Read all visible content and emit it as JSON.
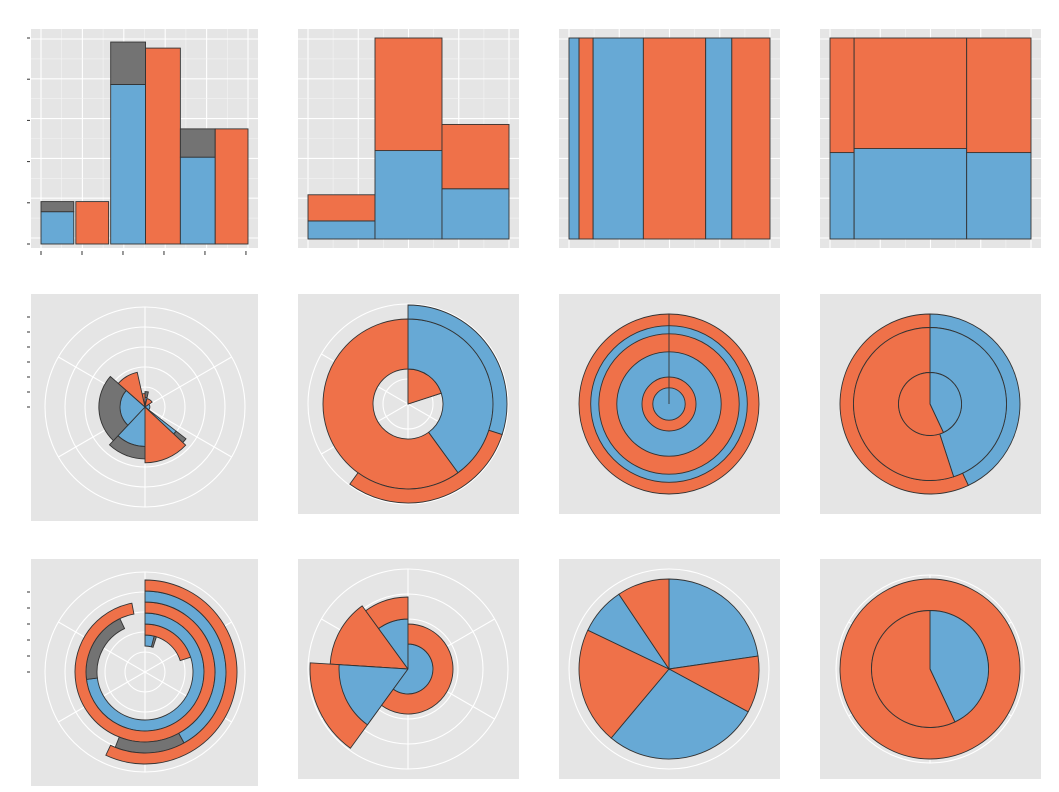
{
  "colors": {
    "blue": "#67a9d5",
    "orange": "#ef7149",
    "gray": "#737373",
    "panel": "#e5e5e5",
    "grid": "#ffffff"
  },
  "chart_data": [
    {
      "type": "bar",
      "subtype": "stacked-histogram",
      "grid": true,
      "ylim": [
        0,
        1.02
      ],
      "x": [
        0,
        1,
        2,
        3,
        4,
        5
      ],
      "bars": [
        {
          "x0": 0,
          "x1": 0.8,
          "segments": [
            {
              "fill": "blue",
              "value": 0.16
            },
            {
              "fill": "gray",
              "value": 0.05
            }
          ]
        },
        {
          "x0": 0.85,
          "x1": 1.65,
          "segments": [
            {
              "fill": "orange",
              "value": 0.21
            }
          ]
        },
        {
          "x0": 1.7,
          "x1": 2.55,
          "segments": [
            {
              "fill": "blue",
              "value": 0.79
            },
            {
              "fill": "gray",
              "value": 0.21
            }
          ]
        },
        {
          "x0": 2.55,
          "x1": 3.4,
          "segments": [
            {
              "fill": "orange",
              "value": 0.97
            }
          ]
        },
        {
          "x0": 3.4,
          "x1": 4.25,
          "segments": [
            {
              "fill": "blue",
              "value": 0.43
            },
            {
              "fill": "gray",
              "value": 0.14
            }
          ]
        },
        {
          "x0": 4.25,
          "x1": 5.05,
          "segments": [
            {
              "fill": "orange",
              "value": 0.57
            }
          ]
        }
      ]
    },
    {
      "type": "bar",
      "subtype": "stacked-variable-width",
      "grid": true,
      "ylim": [
        0,
        1.0
      ],
      "bars": [
        {
          "x0": 0,
          "x1": 1,
          "segments": [
            {
              "fill": "blue",
              "value": 0.09
            },
            {
              "fill": "orange",
              "value": 0.13
            }
          ]
        },
        {
          "x0": 1,
          "x1": 2,
          "segments": [
            {
              "fill": "blue",
              "value": 0.44
            },
            {
              "fill": "orange",
              "value": 0.56
            }
          ]
        },
        {
          "x0": 2,
          "x1": 3,
          "segments": [
            {
              "fill": "blue",
              "value": 0.25
            },
            {
              "fill": "orange",
              "value": 0.32
            }
          ]
        }
      ]
    },
    {
      "type": "bar",
      "subtype": "filled-strips",
      "grid": true,
      "strips": [
        {
          "fill": "blue",
          "width": 0.05
        },
        {
          "fill": "orange",
          "width": 0.07
        },
        {
          "fill": "blue",
          "width": 0.25
        },
        {
          "fill": "orange",
          "width": 0.31
        },
        {
          "fill": "blue",
          "width": 0.13
        },
        {
          "fill": "orange",
          "width": 0.19
        }
      ]
    },
    {
      "type": "bar",
      "subtype": "mosaic",
      "grid": true,
      "columns": [
        {
          "width": 0.12,
          "blue": 0.43,
          "orange": 0.57
        },
        {
          "width": 0.56,
          "blue": 0.45,
          "orange": 0.55
        },
        {
          "width": 0.32,
          "blue": 0.43,
          "orange": 0.57
        }
      ]
    },
    {
      "type": "pie",
      "subtype": "polar-bar-stacked",
      "rlim": [
        0,
        1.04
      ],
      "bars": [
        {
          "t0": 0,
          "t1": 0.035,
          "segments": [
            {
              "fill": "blue",
              "value": 0.1
            },
            {
              "fill": "gray",
              "value": 0.06
            }
          ]
        },
        {
          "t0": 0.965,
          "t1": 1,
          "segments": [
            {
              "fill": "orange",
              "value": 0.14
            }
          ]
        },
        {
          "t0": 0.035,
          "t1": 0.155,
          "segments": [
            {
              "fill": "orange",
              "value": 0.09
            }
          ]
        },
        {
          "t0": 0.155,
          "t1": 0.355,
          "segments": [
            {
              "fill": "blue",
              "value": 0.05
            }
          ]
        },
        {
          "t0": 0.355,
          "t1": 0.62,
          "segments": [
            {
              "fill": "blue",
              "value": 0.41
            },
            {
              "fill": "gray",
              "value": 0.13
            }
          ]
        },
        {
          "t0": 0.37,
          "t1": 0.5,
          "segments": [
            {
              "fill": "orange",
              "value": 0.58
            }
          ]
        },
        {
          "t0": 0.62,
          "t1": 0.865,
          "segments": [
            {
              "fill": "blue",
              "value": 0.26
            },
            {
              "fill": "gray",
              "value": 0.22
            }
          ]
        },
        {
          "t0": 0.865,
          "t1": 0.965,
          "segments": [
            {
              "fill": "orange",
              "value": 0.37
            }
          ]
        }
      ]
    },
    {
      "type": "pie",
      "subtype": "polar-variable-width",
      "rings": [
        {
          "r0": 0.0,
          "r1": 0.35,
          "arcs": [
            {
              "fill": "blue",
              "t0": 0,
              "t1": 0.2
            },
            {
              "fill": "orange",
              "t0": 0,
              "t1": 0.2
            }
          ]
        },
        {
          "r0": 0.35,
          "r1": 0.85,
          "arcs": [
            {
              "fill": "blue",
              "t0": 0,
              "t1": 0.4
            },
            {
              "fill": "orange",
              "t0": 0.4,
              "t1": 1
            }
          ]
        },
        {
          "r0": 0.85,
          "r1": 0.99,
          "arcs": [
            {
              "fill": "blue",
              "t0": 0,
              "t1": 0.3
            },
            {
              "fill": "orange",
              "t0": 0.3,
              "t1": 0.6
            }
          ]
        }
      ]
    },
    {
      "type": "pie",
      "subtype": "polar-strips",
      "rings": [
        {
          "fill": "blue",
          "r": 0.18
        },
        {
          "fill": "orange",
          "r": 0.3
        },
        {
          "fill": "blue",
          "r": 0.58
        },
        {
          "fill": "orange",
          "r": 0.78
        },
        {
          "fill": "blue",
          "r": 0.87
        },
        {
          "fill": "orange",
          "r": 1.0
        }
      ]
    },
    {
      "type": "pie",
      "subtype": "polar-mosaic",
      "rings": [
        {
          "r0": 0.0,
          "r1": 0.35,
          "blue": 0.43,
          "orange": 0.57
        },
        {
          "r0": 0.35,
          "r1": 0.85,
          "blue": 0.45,
          "orange": 0.55
        },
        {
          "r0": 0.85,
          "r1": 1.0,
          "blue": 0.43,
          "orange": 0.57
        }
      ]
    },
    {
      "type": "pie",
      "subtype": "polar-radial-stacked",
      "rings": [
        {
          "segments": [
            {
              "fill": "blue",
              "value": 0.04
            },
            {
              "fill": "gray",
              "value": 0.01
            }
          ]
        },
        {
          "segments": [
            {
              "fill": "orange",
              "value": 0.2
            }
          ]
        },
        {
          "segments": [
            {
              "fill": "blue",
              "value": 0.73
            },
            {
              "fill": "gray",
              "value": 0.2
            }
          ]
        },
        {
          "segments": [
            {
              "fill": "orange",
              "value": 0.97
            }
          ]
        },
        {
          "segments": [
            {
              "fill": "blue",
              "value": 0.42
            },
            {
              "fill": "gray",
              "value": 0.14
            }
          ]
        },
        {
          "segments": [
            {
              "fill": "orange",
              "value": 0.57
            }
          ]
        }
      ]
    },
    {
      "type": "pie",
      "subtype": "polar-angle-width",
      "bars": [
        {
          "t0": 0.76,
          "t1": 0.9,
          "segments": [
            {
              "fill": "orange",
              "value": 0.78
            }
          ]
        },
        {
          "t0": 0.6,
          "t1": 0.76,
          "segments": [
            {
              "fill": "orange",
              "value": 0.98
            }
          ]
        },
        {
          "t0": 0.9,
          "t1": 1.0,
          "segments": [
            {
              "fill": "blue",
              "value": 0.5
            },
            {
              "fill": "orange",
              "value": 0.22
            }
          ]
        },
        {
          "t0": 0.6,
          "t1": 0.76,
          "segments": [
            {
              "fill": "blue",
              "value": 0.69
            }
          ]
        },
        {
          "t0": 0.0,
          "t1": 0.6,
          "segments": [
            {
              "fill": "blue",
              "value": 0.25
            },
            {
              "fill": "orange",
              "value": 0.2
            }
          ]
        }
      ]
    },
    {
      "type": "pie",
      "subtype": "pie-strips",
      "slices": [
        {
          "fill": "blue",
          "value": 0.227
        },
        {
          "fill": "orange",
          "value": 0.102
        },
        {
          "fill": "blue",
          "value": 0.282
        },
        {
          "fill": "orange",
          "value": 0.21
        },
        {
          "fill": "blue",
          "value": 0.085
        },
        {
          "fill": "orange",
          "value": 0.094
        }
      ]
    },
    {
      "type": "pie",
      "subtype": "polar-mosaic-angle",
      "rings": [
        {
          "r0": 0.0,
          "r1": 0.65,
          "blue": 0.43,
          "orange": 0.57
        },
        {
          "r0": 0.65,
          "r1": 1.0,
          "blue": 0.0,
          "orange": 1.0
        }
      ]
    }
  ]
}
